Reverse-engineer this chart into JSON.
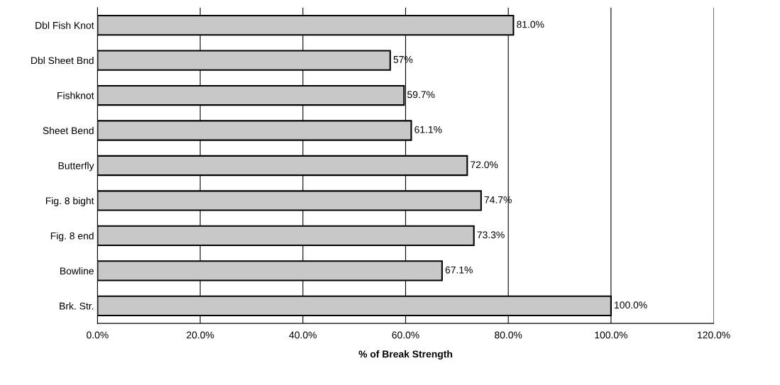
{
  "chart_data": {
    "type": "bar",
    "orientation": "horizontal",
    "xlabel": "% of Break Strength",
    "categories": [
      "Dbl Fish Knot",
      "Dbl Sheet Bnd",
      "Fishknot",
      "Sheet Bend",
      "Butterfly",
      "Fig. 8 bight",
      "Fig. 8 end",
      "Bowline",
      "Brk. Str."
    ],
    "values": [
      81.0,
      57,
      59.7,
      61.1,
      72.0,
      74.7,
      73.3,
      67.1,
      100.0
    ],
    "value_labels": [
      "81.0%",
      "57%",
      "59.7%",
      "61.1%",
      "72.0%",
      "74.7%",
      "73.3%",
      "67.1%",
      "100.0%"
    ],
    "color": "#c8c8c8",
    "xlim": [
      0,
      120
    ],
    "xticks": [
      {
        "value": 0,
        "label": "0.0%"
      },
      {
        "value": 20,
        "label": "20.0%"
      },
      {
        "value": 40,
        "label": "40.0%"
      },
      {
        "value": 60,
        "label": "60.0%"
      },
      {
        "value": 80,
        "label": "80.0%"
      },
      {
        "value": 100,
        "label": "100.0%"
      },
      {
        "value": 120,
        "label": "120.0%"
      }
    ],
    "grid": "x",
    "legend": false
  }
}
